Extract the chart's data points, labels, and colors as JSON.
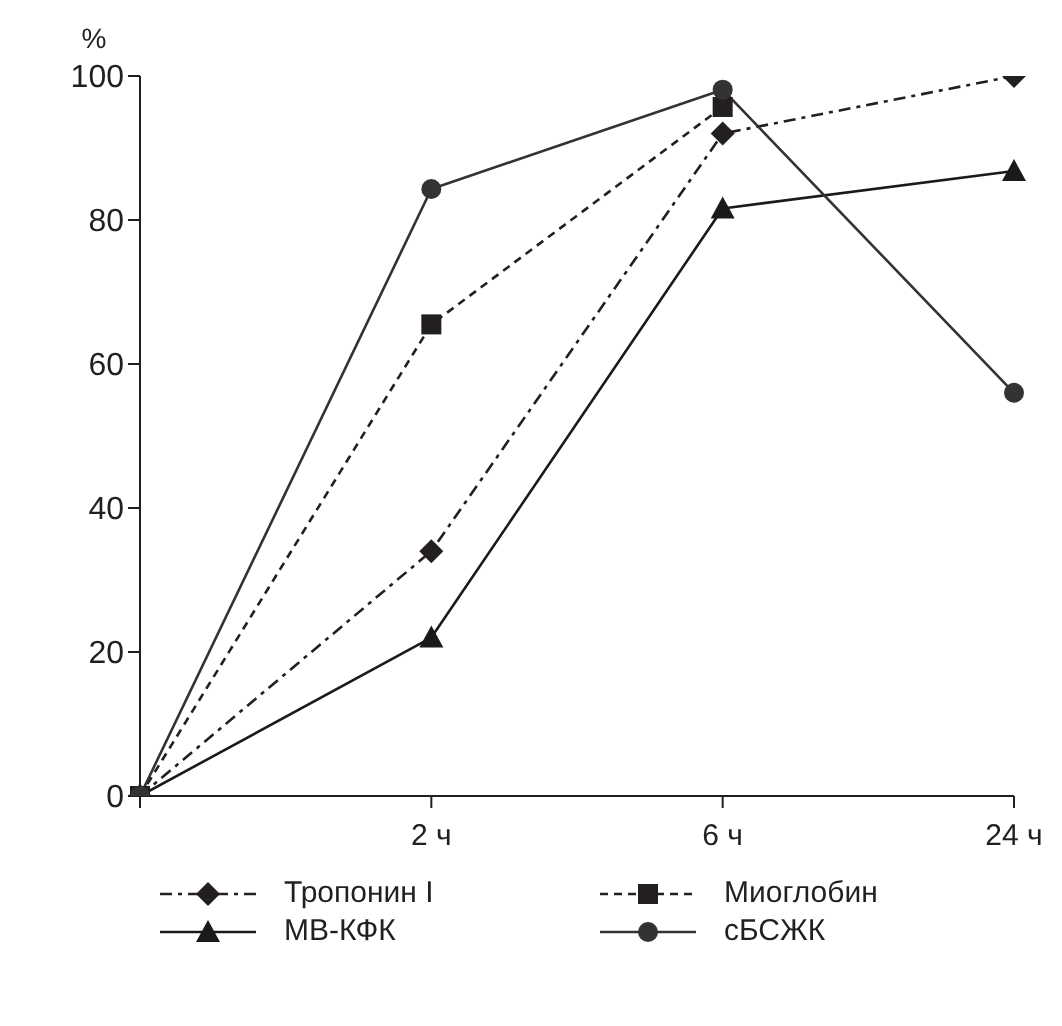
{
  "chart_data": {
    "type": "line",
    "ylabel": "%",
    "categories": [
      null,
      "2 ч",
      "6 ч",
      "24 ч"
    ],
    "ylim": [
      0,
      100
    ],
    "yticks": [
      0,
      20,
      40,
      60,
      80,
      100
    ],
    "grid": false,
    "legend": "bottom",
    "series": [
      {
        "name": "Тропонин I",
        "color": "#231f20",
        "values": [
          0,
          34,
          92,
          100
        ],
        "marker": "diamond",
        "line_style": "dashdot"
      },
      {
        "name": "Миоглобин",
        "color": "#231f20",
        "values": [
          0,
          65.5,
          95.7,
          null
        ],
        "marker": "square",
        "line_style": "dashed"
      },
      {
        "name": "МВ-КФК",
        "color": "#1a1a1a",
        "values": [
          0,
          22,
          81.6,
          86.8
        ],
        "marker": "triangle",
        "line_style": "solid"
      },
      {
        "name": "сБСЖК",
        "color": "#333333",
        "values": [
          0,
          84.3,
          98.1,
          56
        ],
        "marker": "circle",
        "line_style": "solid"
      }
    ]
  }
}
